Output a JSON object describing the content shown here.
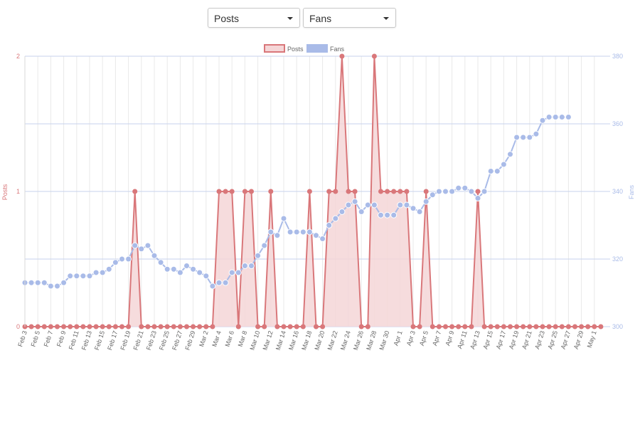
{
  "controls": {
    "left_select_value": "Posts",
    "right_select_value": "Fans"
  },
  "colors": {
    "posts": "#d9777a",
    "posts_fill": "#f5d6d7",
    "fans": "#a9bbe8",
    "grid_h": "#c7d2ec",
    "grid_v": "#e9e9e9"
  },
  "chart_data": {
    "type": "line",
    "legend": {
      "placement": "top-center",
      "entries": [
        "Posts",
        "Fans"
      ]
    },
    "y_left": {
      "label": "Posts",
      "range": [
        0,
        2
      ],
      "ticks": [
        "0",
        "1",
        "2"
      ]
    },
    "y_right": {
      "label": "Fans",
      "range": [
        300,
        380
      ],
      "ticks": [
        "300",
        "320",
        "340",
        "360",
        "380"
      ]
    },
    "grid": true,
    "x_tick_labels": [
      "Feb 3",
      "Feb 5",
      "Feb 7",
      "Feb 9",
      "Feb 11",
      "Feb 13",
      "Feb 15",
      "Feb 17",
      "Feb 19",
      "Feb 21",
      "Feb 23",
      "Feb 25",
      "Feb 27",
      "Feb 29",
      "Mar 2",
      "Mar 4",
      "Mar 6",
      "Mar 8",
      "Mar 10",
      "Mar 12",
      "Mar 14",
      "Mar 16",
      "Mar 18",
      "Mar 20",
      "Mar 22",
      "Mar 24",
      "Mar 26",
      "Mar 28",
      "Mar 30",
      "Apr 1",
      "Apr 3",
      "Apr 5",
      "Apr 7",
      "Apr 9",
      "Apr 11",
      "Apr 13",
      "Apr 15",
      "Apr 17",
      "Apr 19",
      "Apr 21",
      "Apr 23",
      "Apr 25",
      "Apr 27",
      "Apr 29",
      "May 1"
    ],
    "series": [
      {
        "name": "Posts",
        "axis": "left",
        "values": [
          0,
          0,
          0,
          0,
          0,
          0,
          0,
          0,
          0,
          0,
          0,
          0,
          0,
          0,
          0,
          0,
          0,
          1,
          0,
          0,
          0,
          0,
          0,
          0,
          0,
          0,
          0,
          0,
          0,
          0,
          1,
          1,
          1,
          0,
          1,
          1,
          0,
          0,
          1,
          0,
          0,
          0,
          0,
          0,
          1,
          0,
          0,
          1,
          1,
          2,
          1,
          1,
          0,
          0,
          2,
          1,
          1,
          1,
          1,
          1,
          0,
          0,
          1,
          0,
          0,
          0,
          0,
          0,
          0,
          0,
          1,
          0,
          0,
          0,
          0,
          0,
          0,
          0,
          0,
          0,
          0,
          0,
          0,
          0,
          0,
          0,
          0,
          0,
          0,
          0
        ]
      },
      {
        "name": "Fans",
        "axis": "right",
        "values": [
          313,
          313,
          313,
          313,
          312,
          312,
          313,
          315,
          315,
          315,
          315,
          316,
          316,
          317,
          319,
          320,
          320,
          324,
          323,
          324,
          321,
          319,
          317,
          317,
          316,
          318,
          317,
          316,
          315,
          312,
          313,
          313,
          316,
          316,
          318,
          318,
          321,
          324,
          328,
          327,
          332,
          328,
          328,
          328,
          328,
          327,
          326,
          330,
          332,
          334,
          336,
          337,
          334,
          336,
          336,
          333,
          333,
          333,
          336,
          336,
          335,
          334,
          337,
          339,
          340,
          340,
          340,
          341,
          341,
          340,
          338,
          340,
          346,
          346,
          348,
          351,
          356,
          356,
          356,
          357,
          361,
          362,
          362,
          362,
          362,
          null,
          null,
          null,
          null,
          null
        ]
      }
    ]
  }
}
